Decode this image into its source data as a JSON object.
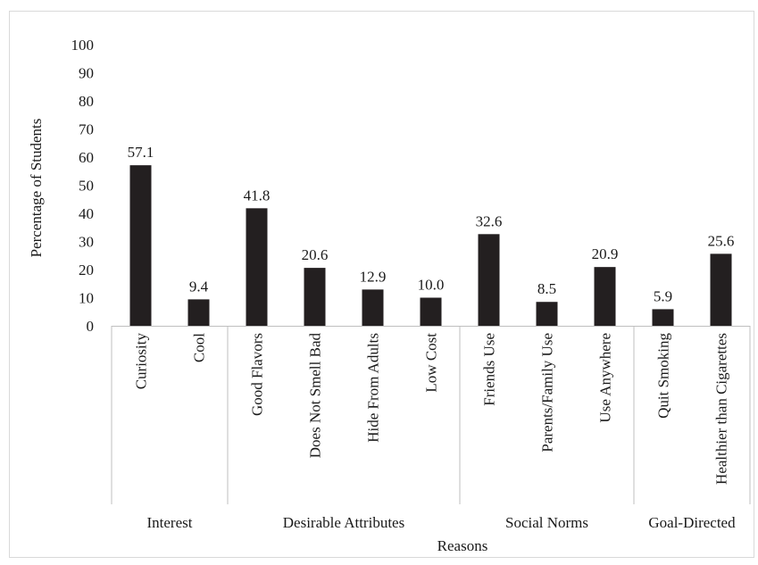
{
  "chart_data": {
    "type": "bar",
    "title": "",
    "xlabel": "Reasons",
    "ylabel": "Percentage of Students",
    "ylim": [
      0,
      100
    ],
    "yticks": [
      0,
      10,
      20,
      30,
      40,
      50,
      60,
      70,
      80,
      90,
      100
    ],
    "grid": false,
    "legend": "none",
    "bar_color": "#231f20",
    "categories": [
      "Curiosity",
      "Cool",
      "Good Flavors",
      "Does Not Smell Bad",
      "Hide From Adults",
      "Low Cost",
      "Friends Use",
      "Parents/Family Use",
      "Use Anywhere",
      "Quit Smoking",
      "Healthier than Cigarettes"
    ],
    "values": [
      57.1,
      9.4,
      41.8,
      20.6,
      12.9,
      10.0,
      32.6,
      8.5,
      20.9,
      5.9,
      25.6
    ],
    "value_labels": [
      "57.1",
      "9.4",
      "41.8",
      "20.6",
      "12.9",
      "10.0",
      "32.6",
      "8.5",
      "20.9",
      "5.9",
      "25.6"
    ],
    "groups": [
      {
        "name": "Interest",
        "count": 2
      },
      {
        "name": "Desirable Attributes",
        "count": 4
      },
      {
        "name": "Social Norms",
        "count": 3
      },
      {
        "name": "Goal-Directed",
        "count": 2
      }
    ]
  }
}
